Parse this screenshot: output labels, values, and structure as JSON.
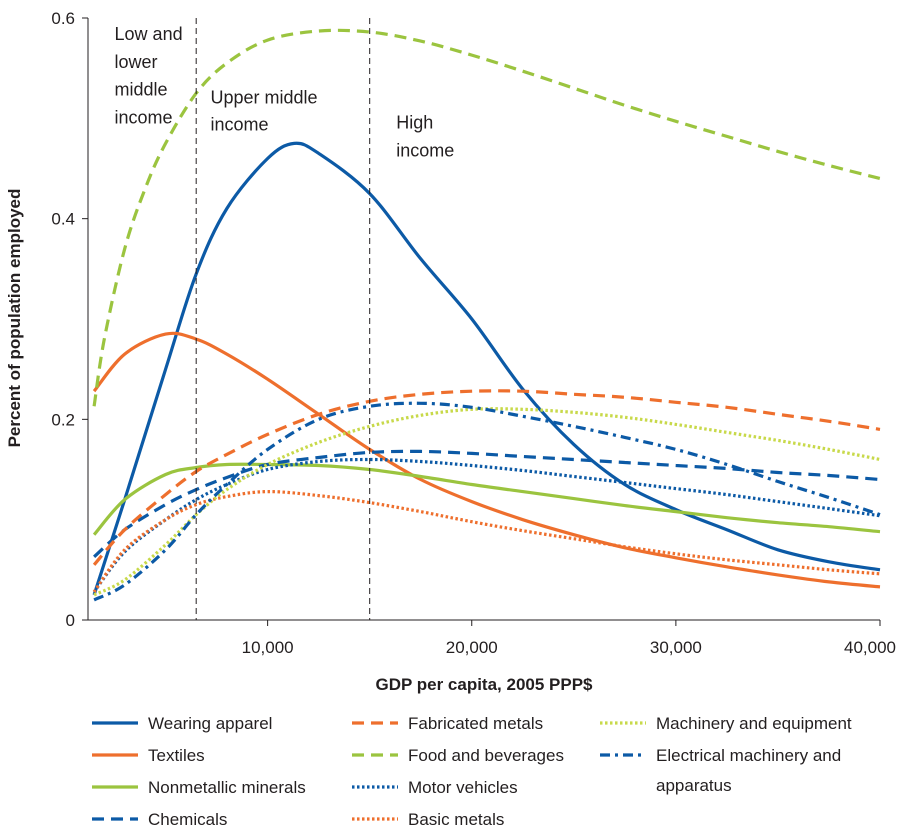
{
  "chart_data": {
    "type": "line",
    "title": "",
    "xlabel": "GDP per capita, 2005 PPP$",
    "ylabel": "Percent of population employed",
    "xlim": [
      1200,
      40000
    ],
    "ylim": [
      0,
      0.6
    ],
    "x_ticks": [
      10000,
      20000,
      30000,
      40000
    ],
    "x_tick_labels": [
      "10,000",
      "20,000",
      "30,000",
      "40,000"
    ],
    "y_ticks": [
      0,
      0.2,
      0.4,
      0.6
    ],
    "y_tick_labels": [
      "0",
      "0.2",
      "0.4",
      "0.6"
    ],
    "grid": false,
    "legend_position": "bottom",
    "reference_lines": [
      {
        "x": 6500
      },
      {
        "x": 15000
      }
    ],
    "regions": [
      {
        "label_lines": [
          "Low and",
          "lower",
          "middle",
          "income"
        ],
        "x": 2500,
        "y_lines": [
          0.578,
          0.55,
          0.523,
          0.495
        ]
      },
      {
        "label_lines": [
          "Upper middle",
          "income"
        ],
        "x": 7200,
        "y_lines": [
          0.515,
          0.488
        ]
      },
      {
        "label_lines": [
          "High",
          "income"
        ],
        "x": 16300,
        "y_lines": [
          0.49,
          0.462
        ]
      }
    ],
    "series": [
      {
        "name": "Wearing apparel",
        "color": "#0c5aa6",
        "dash": "solid",
        "x": [
          1500,
          3000,
          5000,
          6500,
          8000,
          10000,
          11300,
          12500,
          15000,
          17500,
          20000,
          22500,
          25000,
          27500,
          30000,
          32500,
          35000,
          37500,
          40000
        ],
        "y": [
          0.025,
          0.12,
          0.25,
          0.345,
          0.41,
          0.46,
          0.475,
          0.465,
          0.425,
          0.36,
          0.3,
          0.23,
          0.175,
          0.135,
          0.11,
          0.09,
          0.07,
          0.058,
          0.05
        ]
      },
      {
        "name": "Textiles",
        "color": "#ee6f2d",
        "dash": "solid",
        "x": [
          1500,
          3000,
          5000,
          6500,
          8000,
          10000,
          12500,
          15000,
          17500,
          20000,
          22500,
          25000,
          27500,
          30000,
          32500,
          35000,
          37500,
          40000
        ],
        "y": [
          0.228,
          0.265,
          0.285,
          0.28,
          0.265,
          0.24,
          0.205,
          0.17,
          0.14,
          0.118,
          0.1,
          0.085,
          0.072,
          0.062,
          0.053,
          0.045,
          0.038,
          0.033
        ]
      },
      {
        "name": "Nonmetallic minerals",
        "color": "#9bc43f",
        "dash": "solid",
        "x": [
          1500,
          3000,
          5000,
          6500,
          8000,
          10000,
          12500,
          15000,
          17500,
          20000,
          22500,
          25000,
          27500,
          30000,
          32500,
          35000,
          37500,
          40000
        ],
        "y": [
          0.085,
          0.12,
          0.145,
          0.152,
          0.155,
          0.155,
          0.154,
          0.15,
          0.143,
          0.135,
          0.128,
          0.121,
          0.114,
          0.108,
          0.102,
          0.097,
          0.093,
          0.088
        ]
      },
      {
        "name": "Chemicals",
        "color": "#0c5aa6",
        "dash": "long",
        "x": [
          1500,
          3000,
          5000,
          6500,
          8000,
          10000,
          12500,
          15000,
          17500,
          20000,
          22500,
          25000,
          27500,
          30000,
          32500,
          35000,
          37500,
          40000
        ],
        "y": [
          0.063,
          0.09,
          0.115,
          0.13,
          0.142,
          0.155,
          0.162,
          0.167,
          0.168,
          0.166,
          0.163,
          0.16,
          0.157,
          0.154,
          0.151,
          0.147,
          0.144,
          0.14
        ]
      },
      {
        "name": "Fabricated metals",
        "color": "#ee6f2d",
        "dash": "long",
        "x": [
          1500,
          3000,
          5000,
          6500,
          8000,
          10000,
          12500,
          15000,
          17500,
          20000,
          22500,
          25000,
          27500,
          30000,
          32500,
          35000,
          37500,
          40000
        ],
        "y": [
          0.055,
          0.09,
          0.125,
          0.148,
          0.165,
          0.185,
          0.205,
          0.218,
          0.225,
          0.228,
          0.228,
          0.225,
          0.222,
          0.217,
          0.212,
          0.205,
          0.198,
          0.19
        ]
      },
      {
        "name": "Food and beverages",
        "color": "#9bc43f",
        "dash": "long",
        "x": [
          1500,
          2000,
          3000,
          4000,
          5000,
          6500,
          8000,
          10000,
          12500,
          15000,
          17500,
          20000,
          22500,
          25000,
          27500,
          30000,
          32500,
          35000,
          37500,
          40000
        ],
        "y": [
          0.213,
          0.28,
          0.37,
          0.43,
          0.475,
          0.525,
          0.555,
          0.578,
          0.587,
          0.586,
          0.577,
          0.563,
          0.547,
          0.53,
          0.513,
          0.497,
          0.482,
          0.467,
          0.453,
          0.44
        ]
      },
      {
        "name": "Motor vehicles",
        "color": "#0c5aa6",
        "dash": "dot",
        "x": [
          1500,
          3000,
          5000,
          6500,
          8000,
          10000,
          12500,
          15000,
          17500,
          20000,
          22500,
          25000,
          27500,
          30000,
          32500,
          35000,
          37500,
          40000
        ],
        "y": [
          0.028,
          0.068,
          0.1,
          0.12,
          0.135,
          0.15,
          0.158,
          0.16,
          0.158,
          0.154,
          0.149,
          0.143,
          0.137,
          0.131,
          0.125,
          0.118,
          0.111,
          0.104
        ]
      },
      {
        "name": "Basic metals",
        "color": "#ee6f2d",
        "dash": "dot",
        "x": [
          1500,
          3000,
          5000,
          6500,
          8000,
          10000,
          12500,
          15000,
          17500,
          20000,
          22500,
          25000,
          27500,
          30000,
          32500,
          35000,
          37500,
          40000
        ],
        "y": [
          0.028,
          0.07,
          0.1,
          0.115,
          0.123,
          0.128,
          0.124,
          0.117,
          0.108,
          0.098,
          0.089,
          0.081,
          0.073,
          0.066,
          0.06,
          0.055,
          0.05,
          0.046
        ]
      },
      {
        "name": "Machinery and equipment",
        "color": "#c8d94a",
        "dash": "dot",
        "x": [
          1500,
          3000,
          5000,
          6500,
          8000,
          10000,
          12500,
          15000,
          17500,
          20000,
          22500,
          25000,
          27500,
          30000,
          32500,
          35000,
          37500,
          40000
        ],
        "y": [
          0.025,
          0.04,
          0.075,
          0.105,
          0.13,
          0.155,
          0.177,
          0.193,
          0.204,
          0.21,
          0.21,
          0.207,
          0.202,
          0.195,
          0.187,
          0.179,
          0.17,
          0.16
        ]
      },
      {
        "name": "Electrical machinery and apparatus",
        "name_lines": [
          "Electrical machinery and",
          "apparatus"
        ],
        "color": "#0c5aa6",
        "dash": "dashdot",
        "x": [
          1500,
          3000,
          5000,
          6500,
          8000,
          10000,
          12500,
          15000,
          17500,
          20000,
          22500,
          25000,
          27500,
          30000,
          32500,
          35000,
          37500,
          40000
        ],
        "y": [
          0.02,
          0.035,
          0.07,
          0.105,
          0.135,
          0.17,
          0.2,
          0.213,
          0.216,
          0.212,
          0.203,
          0.193,
          0.182,
          0.17,
          0.155,
          0.138,
          0.122,
          0.105
        ]
      }
    ]
  }
}
